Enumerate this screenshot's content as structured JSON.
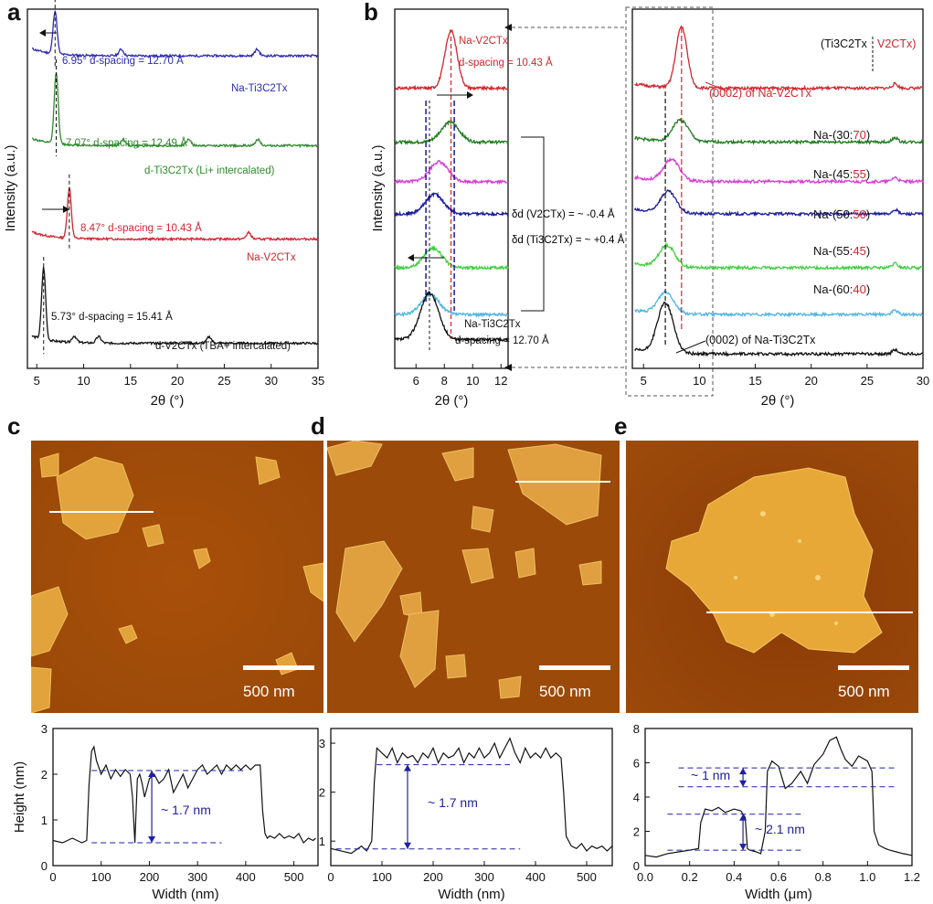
{
  "panel_labels": {
    "a": "a",
    "b": "b",
    "c": "c",
    "d": "d",
    "e": "e"
  },
  "colors": {
    "black": "#111111",
    "red": "#d0262e",
    "blue": "#2b2bb3",
    "green": "#2e8b2e",
    "magenta": "#d63ad6",
    "navy": "#1a1a9e",
    "lgreen": "#3fcf3f",
    "lblue": "#4fb4e0",
    "dkgreen": "#1f7a1f",
    "annblue": "#2020a0"
  },
  "afm": {
    "c": {
      "scale": "500 nm"
    },
    "d": {
      "scale": "500 nm"
    },
    "e": {
      "scale": "500 nm"
    }
  },
  "chart_data": [
    {
      "id": "a",
      "type": "line",
      "xlabel": "2θ (°)",
      "ylabel": "Intensity (a.u.)",
      "xlim": [
        4,
        35
      ],
      "xticks": [
        5,
        10,
        15,
        20,
        25,
        30,
        35
      ],
      "series": [
        {
          "name": "Na-Ti3C2Tx",
          "color": "#2b2bb3",
          "peak": 6.95,
          "baseline": 0.87,
          "minor": [
            14.0,
            28.5
          ]
        },
        {
          "name": "d-Ti3C2Tx (Li+ intercalated)",
          "color": "#2e8b2e",
          "peak": 7.07,
          "baseline": 0.62,
          "minor": [
            14.2,
            21.2,
            28.6
          ]
        },
        {
          "name": "Na-V2CTx",
          "color": "#d0262e",
          "peak": 8.47,
          "baseline": 0.36,
          "minor": [
            27.6
          ]
        },
        {
          "name": "d-V2CTx (TBA+ intercalated)",
          "color": "#111111",
          "peak": 5.73,
          "baseline": 0.07,
          "minor": [
            9.0,
            11.6,
            23.4
          ]
        }
      ],
      "annotations": [
        {
          "text": "6.95°  d-spacing = 12.70 Å",
          "color": "#2b2bb3"
        },
        {
          "text": "Na-Ti3C2Tx",
          "color": "#2b2bb3"
        },
        {
          "text": "7.07°  d-spacing = 12.49 Å",
          "color": "#2e8b2e"
        },
        {
          "text": "d-Ti3C2Tx (Li+ intercalated)",
          "color": "#2e8b2e"
        },
        {
          "text": "8.47°  d-spacing = 10.43 Å",
          "color": "#d0262e"
        },
        {
          "text": "Na-V2CTx",
          "color": "#d0262e"
        },
        {
          "text": "5.73°  d-spacing = 15.41 Å",
          "color": "#111111"
        },
        {
          "text": "d-V2CTx (TBA+ intercalated)",
          "color": "#111111"
        }
      ]
    },
    {
      "id": "b-zoom",
      "type": "line",
      "xlabel": "2θ (°)",
      "ylabel": "Intensity (a.u.)",
      "xlim": [
        4.5,
        12.5
      ],
      "xticks": [
        6,
        8,
        10,
        12
      ],
      "series": [
        {
          "name": "Na-V2CTx",
          "color": "#d0262e",
          "peak": 8.47
        },
        {
          "name": "Na-(30:70)",
          "color": "#1f7a1f",
          "peak": 8.4
        },
        {
          "name": "Na-(45:55)",
          "color": "#d63ad6",
          "peak": 7.6
        },
        {
          "name": "Na-(50:50)",
          "color": "#1a1a9e",
          "peak": 7.3
        },
        {
          "name": "Na-(55:45)",
          "color": "#3fcf3f",
          "peak": 7.2
        },
        {
          "name": "Na-(60:40)",
          "color": "#4fb4e0",
          "peak": 7.0
        },
        {
          "name": "Na-Ti3C2Tx",
          "color": "#111111",
          "peak": 6.95
        }
      ],
      "annotations": [
        {
          "text": "Na-V2CTx",
          "color": "#d0262e"
        },
        {
          "text": "d-spacing = 10.43 Å",
          "color": "#d0262e"
        },
        {
          "text": "Na-Ti3C2Tx",
          "color": "#111111"
        },
        {
          "text": "d-spacing = 12.70 Å",
          "color": "#111111"
        },
        {
          "text": "δd (V2CTx) = ~ -0.4 Å",
          "color": "#111111"
        },
        {
          "text": "δd (Ti3C2Tx) = ~ +0.4 Å",
          "color": "#111111"
        }
      ]
    },
    {
      "id": "b-full",
      "type": "line",
      "xlabel": "2θ (°)",
      "xlim": [
        4,
        30
      ],
      "xticks": [
        5,
        10,
        15,
        20,
        25,
        30
      ],
      "legend_header": {
        "left": "(Ti3C2Tx",
        "right": "V2CTx)"
      },
      "series": [
        {
          "name": "Na-V2CTx",
          "color": "#d0262e",
          "peak": 8.4
        },
        {
          "name": "Na-(30:70)",
          "color": "#1f7a1f",
          "peak": 8.3,
          "label_black": "Na-(30:",
          "label_red": "70",
          "label_end": ")"
        },
        {
          "name": "Na-(45:55)",
          "color": "#d63ad6",
          "peak": 7.5,
          "label_black": "Na-(45:",
          "label_red": "55",
          "label_end": ")"
        },
        {
          "name": "Na-(50:50)",
          "color": "#1a1a9e",
          "peak": 7.2,
          "label_black": "Na-(50:",
          "label_red": "50",
          "label_end": ")"
        },
        {
          "name": "Na-(55:45)",
          "color": "#3fcf3f",
          "peak": 7.1,
          "label_black": "Na-(55:",
          "label_red": "45",
          "label_end": ")"
        },
        {
          "name": "Na-(60:40)",
          "color": "#4fb4e0",
          "peak": 7.0,
          "label_black": "Na-(60:",
          "label_red": "40",
          "label_end": ")"
        },
        {
          "name": "Na-Ti3C2Tx",
          "color": "#111111",
          "peak": 6.95
        }
      ],
      "annotations": [
        {
          "text": "(0002) of Na-V2CTx",
          "color": "#d0262e"
        },
        {
          "text": "(0002) of Na-Ti3C2Tx",
          "color": "#111111"
        }
      ]
    },
    {
      "id": "c-profile",
      "type": "line",
      "xlabel": "Width (nm)",
      "ylabel": "Height (nm)",
      "xlim": [
        0,
        550
      ],
      "ylim": [
        0,
        3
      ],
      "xticks": [
        0,
        100,
        200,
        300,
        400,
        500
      ],
      "yticks": [
        0,
        1,
        2,
        3
      ],
      "x": [
        0,
        20,
        40,
        60,
        70,
        75,
        80,
        85,
        90,
        100,
        110,
        120,
        130,
        140,
        150,
        160,
        165,
        170,
        175,
        180,
        185,
        190,
        200,
        210,
        220,
        230,
        240,
        250,
        260,
        270,
        280,
        290,
        300,
        310,
        320,
        330,
        340,
        350,
        360,
        370,
        380,
        390,
        400,
        410,
        420,
        430,
        435,
        440,
        445,
        450,
        460,
        470,
        480,
        490,
        500,
        510,
        520,
        530,
        540,
        545
      ],
      "y": [
        0.55,
        0.5,
        0.6,
        0.5,
        0.55,
        1.8,
        2.5,
        2.6,
        2.3,
        2.0,
        2.2,
        1.9,
        2.1,
        1.95,
        2.1,
        2.0,
        1.5,
        0.5,
        1.9,
        2.0,
        1.8,
        1.5,
        1.9,
        2.0,
        1.8,
        1.9,
        2.1,
        1.6,
        1.8,
        2.0,
        1.7,
        1.9,
        2.1,
        2.2,
        2.0,
        2.1,
        2.2,
        2.0,
        2.2,
        2.1,
        2.2,
        2.1,
        2.2,
        2.1,
        2.2,
        2.2,
        1.2,
        0.7,
        0.6,
        0.65,
        0.6,
        0.7,
        0.6,
        0.65,
        0.6,
        0.7,
        0.5,
        0.6,
        0.55,
        0.6
      ],
      "dashed": [
        2.08,
        0.5
      ],
      "annotation": "~ 1.7 nm"
    },
    {
      "id": "d-profile",
      "type": "line",
      "xlabel": "Width (nm)",
      "xlim": [
        0,
        550
      ],
      "ylim": [
        0.5,
        3.3
      ],
      "xticks": [
        0,
        100,
        200,
        300,
        400,
        500
      ],
      "yticks": [
        1,
        2,
        3
      ],
      "x": [
        0,
        20,
        40,
        60,
        70,
        80,
        85,
        90,
        100,
        110,
        120,
        130,
        140,
        150,
        160,
        170,
        180,
        190,
        200,
        210,
        220,
        230,
        240,
        250,
        260,
        270,
        280,
        290,
        300,
        310,
        320,
        330,
        340,
        350,
        360,
        370,
        380,
        390,
        400,
        410,
        420,
        430,
        440,
        450,
        455,
        460,
        470,
        480,
        490,
        500,
        510,
        520,
        530,
        540,
        550
      ],
      "y": [
        0.85,
        0.8,
        0.75,
        0.9,
        0.8,
        1.0,
        2.2,
        2.9,
        2.8,
        2.7,
        2.9,
        2.6,
        2.8,
        2.7,
        2.75,
        2.6,
        2.8,
        2.7,
        2.9,
        2.6,
        2.8,
        2.7,
        2.75,
        2.9,
        2.6,
        2.8,
        2.7,
        2.9,
        2.7,
        2.8,
        3.0,
        2.7,
        2.9,
        3.1,
        2.8,
        2.6,
        2.9,
        2.7,
        2.8,
        2.7,
        2.9,
        2.7,
        2.8,
        2.7,
        2.0,
        1.1,
        0.9,
        0.85,
        0.95,
        0.8,
        0.9,
        0.85,
        0.9,
        0.8,
        0.9
      ],
      "dashed": [
        2.56,
        0.84
      ],
      "annotation": "~ 1.7 nm"
    },
    {
      "id": "e-profile",
      "type": "line",
      "xlabel": "Width (μm)",
      "xlim": [
        0,
        1.2
      ],
      "ylim": [
        0,
        8
      ],
      "xticks": [
        0.0,
        0.2,
        0.4,
        0.6,
        0.8,
        1.0,
        1.2
      ],
      "yticks": [
        0,
        2,
        4,
        6,
        8
      ],
      "x": [
        0,
        0.05,
        0.1,
        0.15,
        0.2,
        0.24,
        0.25,
        0.27,
        0.3,
        0.33,
        0.36,
        0.4,
        0.43,
        0.45,
        0.46,
        0.47,
        0.5,
        0.52,
        0.54,
        0.55,
        0.57,
        0.6,
        0.63,
        0.66,
        0.7,
        0.73,
        0.76,
        0.8,
        0.83,
        0.86,
        0.88,
        0.9,
        0.93,
        0.96,
        1.0,
        1.02,
        1.03,
        1.05,
        1.08,
        1.1,
        1.13,
        1.16,
        1.2
      ],
      "y": [
        0.6,
        0.5,
        0.7,
        0.8,
        0.9,
        1.0,
        2.5,
        3.3,
        3.2,
        3.4,
        3.1,
        3.3,
        3.2,
        2.8,
        1.0,
        0.9,
        0.8,
        0.7,
        2.0,
        5.5,
        6.1,
        5.8,
        4.5,
        4.8,
        5.5,
        4.8,
        5.9,
        6.5,
        7.3,
        7.5,
        6.8,
        6.2,
        5.8,
        6.4,
        6.1,
        5.5,
        2.0,
        1.2,
        1.0,
        0.9,
        0.8,
        0.7,
        0.6
      ],
      "dashed": [
        5.7,
        4.6,
        3.0,
        0.9
      ],
      "annotations": [
        "~ 1 nm",
        "~ 2.1 nm"
      ]
    }
  ]
}
